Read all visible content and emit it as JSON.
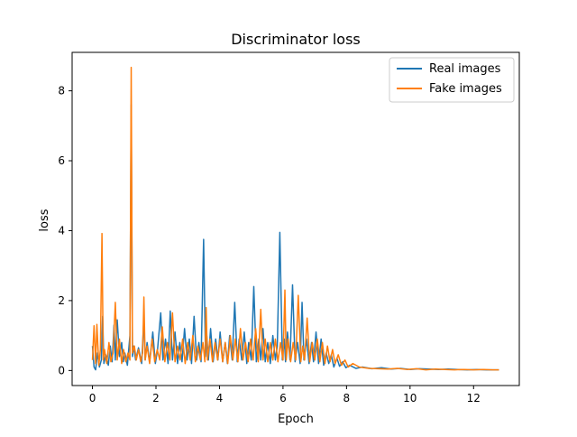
{
  "chart_data": {
    "type": "line",
    "title": "Discriminator loss",
    "xlabel": "Epoch",
    "ylabel": "loss",
    "xlim": [
      -0.64,
      13.44
    ],
    "ylim": [
      -0.43,
      9.1
    ],
    "x_ticks": [
      0,
      2,
      4,
      6,
      8,
      10,
      12
    ],
    "y_ticks": [
      0,
      2,
      4,
      6,
      8
    ],
    "grid": false,
    "legend_position": "upper-right",
    "series": [
      {
        "name": "Real images",
        "color": "#1f77b4",
        "x": [
          0,
          0.05,
          0.1,
          0.16,
          0.22,
          0.28,
          0.32,
          0.36,
          0.42,
          0.5,
          0.56,
          0.62,
          0.68,
          0.72,
          0.78,
          0.85,
          0.92,
          0.97,
          1.02,
          1.1,
          1.18,
          1.22,
          1.26,
          1.3,
          1.36,
          1.45,
          1.55,
          1.62,
          1.66,
          1.72,
          1.8,
          1.9,
          1.98,
          2.05,
          2.15,
          2.22,
          2.3,
          2.38,
          2.45,
          2.52,
          2.6,
          2.68,
          2.75,
          2.82,
          2.9,
          2.98,
          3.05,
          3.12,
          3.2,
          3.28,
          3.35,
          3.42,
          3.5,
          3.56,
          3.6,
          3.65,
          3.72,
          3.8,
          3.88,
          3.95,
          4.02,
          4.1,
          4.18,
          4.25,
          4.32,
          4.4,
          4.48,
          4.56,
          4.62,
          4.7,
          4.78,
          4.86,
          4.92,
          5.0,
          5.08,
          5.16,
          5.24,
          5.3,
          5.37,
          5.44,
          5.52,
          5.6,
          5.68,
          5.76,
          5.82,
          5.9,
          5.98,
          6.04,
          6.08,
          6.14,
          6.22,
          6.3,
          6.38,
          6.46,
          6.54,
          6.6,
          6.66,
          6.74,
          6.82,
          6.9,
          6.96,
          7.04,
          7.12,
          7.2,
          7.28,
          7.36,
          7.44,
          7.52,
          7.6,
          7.7,
          7.78,
          7.88,
          7.98,
          8.1,
          8.3,
          8.5,
          8.8,
          9.1,
          9.4,
          9.7,
          10.0,
          10.3,
          10.6,
          10.9,
          11.2,
          11.5,
          11.8,
          12.1,
          12.4,
          12.8
        ],
        "y": [
          0.7,
          0.1,
          0.02,
          0.5,
          0.1,
          0.3,
          1.55,
          0.2,
          0.45,
          0.15,
          0.7,
          0.25,
          1.3,
          0.3,
          1.45,
          0.4,
          0.8,
          0.25,
          0.5,
          0.15,
          1.0,
          7.6,
          0.4,
          0.7,
          0.3,
          0.65,
          0.2,
          1.5,
          0.3,
          0.8,
          0.25,
          1.1,
          0.2,
          0.6,
          1.65,
          0.3,
          0.9,
          0.2,
          1.7,
          0.3,
          1.1,
          0.2,
          0.8,
          0.25,
          1.2,
          0.3,
          0.9,
          0.2,
          1.55,
          0.3,
          0.8,
          0.25,
          3.75,
          0.4,
          1.0,
          0.3,
          1.2,
          0.25,
          0.9,
          0.3,
          1.1,
          0.25,
          0.8,
          0.2,
          1.0,
          0.3,
          1.95,
          0.25,
          0.9,
          0.3,
          1.1,
          0.2,
          0.8,
          0.3,
          2.4,
          0.25,
          0.9,
          0.3,
          1.2,
          0.25,
          0.8,
          0.2,
          1.0,
          0.3,
          0.7,
          3.95,
          0.3,
          0.9,
          0.25,
          1.1,
          0.3,
          2.45,
          0.25,
          0.8,
          0.2,
          1.95,
          0.3,
          0.9,
          0.2,
          0.8,
          0.25,
          1.1,
          0.2,
          0.9,
          0.15,
          0.5,
          0.2,
          0.45,
          0.1,
          0.35,
          0.12,
          0.25,
          0.08,
          0.15,
          0.06,
          0.1,
          0.05,
          0.08,
          0.04,
          0.06,
          0.03,
          0.05,
          0.04,
          0.03,
          0.04,
          0.03,
          0.02,
          0.03,
          0.02,
          0.02
        ],
        "marks": [
          "data line with dense spikes"
        ]
      },
      {
        "name": "Fake images",
        "color": "#ff7f0e",
        "x": [
          0,
          0.05,
          0.1,
          0.14,
          0.2,
          0.25,
          0.3,
          0.34,
          0.38,
          0.45,
          0.52,
          0.58,
          0.65,
          0.72,
          0.78,
          0.85,
          0.92,
          0.98,
          1.05,
          1.12,
          1.18,
          1.22,
          1.26,
          1.32,
          1.38,
          1.45,
          1.52,
          1.58,
          1.62,
          1.66,
          1.72,
          1.8,
          1.88,
          1.96,
          2.04,
          2.12,
          2.2,
          2.28,
          2.36,
          2.44,
          2.52,
          2.6,
          2.68,
          2.76,
          2.84,
          2.92,
          3.0,
          3.08,
          3.16,
          3.24,
          3.32,
          3.4,
          3.48,
          3.54,
          3.58,
          3.62,
          3.7,
          3.78,
          3.86,
          3.94,
          4.02,
          4.1,
          4.18,
          4.26,
          4.34,
          4.42,
          4.5,
          4.58,
          4.66,
          4.74,
          4.82,
          4.9,
          4.98,
          5.06,
          5.14,
          5.22,
          5.3,
          5.37,
          5.44,
          5.52,
          5.6,
          5.68,
          5.76,
          5.84,
          5.92,
          6.0,
          6.06,
          6.1,
          6.16,
          6.24,
          6.32,
          6.4,
          6.48,
          6.56,
          6.62,
          6.68,
          6.76,
          6.84,
          6.92,
          7.0,
          7.08,
          7.16,
          7.24,
          7.32,
          7.4,
          7.48,
          7.56,
          7.64,
          7.74,
          7.84,
          7.95,
          8.05,
          8.2,
          8.4,
          8.7,
          9.0,
          9.3,
          9.6,
          9.9,
          10.2,
          10.5,
          10.8,
          11.1,
          11.4,
          11.7,
          12.0,
          12.3,
          12.6,
          12.8
        ],
        "y": [
          0.3,
          1.28,
          0.2,
          1.32,
          0.15,
          0.6,
          3.92,
          0.3,
          0.6,
          0.2,
          0.8,
          0.25,
          0.5,
          1.95,
          0.3,
          0.9,
          0.2,
          0.6,
          0.25,
          0.5,
          0.3,
          8.67,
          0.5,
          0.7,
          0.3,
          0.6,
          0.25,
          0.5,
          2.1,
          0.3,
          0.7,
          0.2,
          0.9,
          0.25,
          0.6,
          0.3,
          1.25,
          0.25,
          0.8,
          0.3,
          1.65,
          0.25,
          0.7,
          0.3,
          0.9,
          0.2,
          0.8,
          0.3,
          1.0,
          0.25,
          0.7,
          0.3,
          0.8,
          0.25,
          1.8,
          0.3,
          0.9,
          0.25,
          0.8,
          0.3,
          0.9,
          0.25,
          0.8,
          0.2,
          1.0,
          0.3,
          0.9,
          0.25,
          1.2,
          0.3,
          0.8,
          0.25,
          0.9,
          0.3,
          1.2,
          0.25,
          1.75,
          0.3,
          0.9,
          0.25,
          0.8,
          0.3,
          0.9,
          0.25,
          0.8,
          0.3,
          2.3,
          0.3,
          0.9,
          0.25,
          0.8,
          0.3,
          2.15,
          0.25,
          0.7,
          0.3,
          1.5,
          0.25,
          0.8,
          0.3,
          0.9,
          0.25,
          0.8,
          0.2,
          0.7,
          0.25,
          0.6,
          0.2,
          0.45,
          0.15,
          0.3,
          0.1,
          0.2,
          0.1,
          0.06,
          0.05,
          0.04,
          0.06,
          0.03,
          0.05,
          0.02,
          0.04,
          0.03,
          0.02,
          0.03,
          0.02,
          0.03,
          0.02,
          0.02
        ],
        "marks": [
          "data line with dense spikes"
        ]
      }
    ]
  }
}
